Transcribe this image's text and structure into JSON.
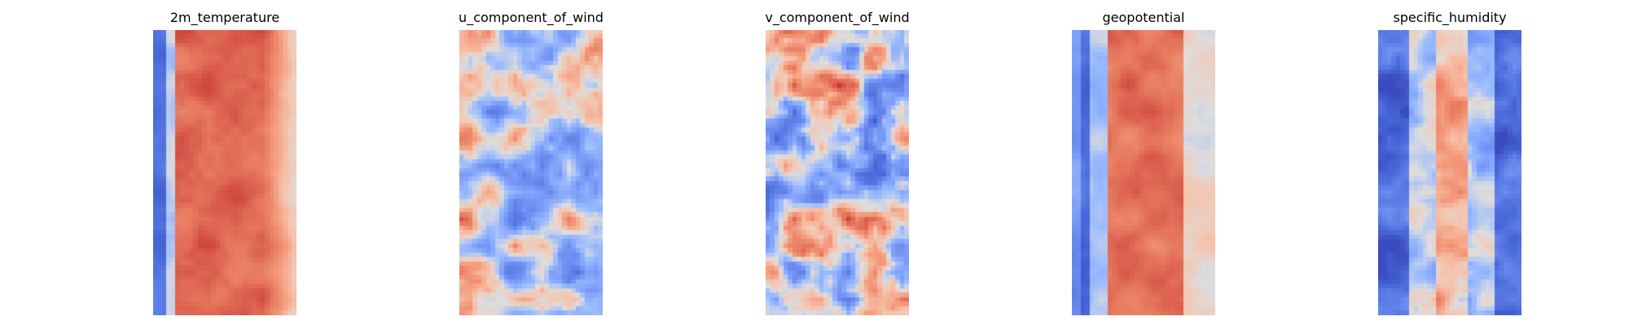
{
  "figure": {
    "panels": [
      {
        "title": "2m_temperature"
      },
      {
        "title": "u_component_of_wind"
      },
      {
        "title": "v_component_of_wind"
      },
      {
        "title": "geopotential"
      },
      {
        "title": "specific_humidity"
      }
    ]
  },
  "chart_data": [
    {
      "type": "heatmap",
      "title": "2m_temperature",
      "colormap": "coolwarm",
      "axes": "off",
      "grid": false,
      "pattern": "warm central band, cold left strip, pale right margin"
    },
    {
      "type": "heatmap",
      "title": "u_component_of_wind",
      "colormap": "coolwarm",
      "axes": "off",
      "grid": false,
      "pattern": "mottled, predominantly cool with warm streaks on left"
    },
    {
      "type": "heatmap",
      "title": "v_component_of_wind",
      "colormap": "coolwarm",
      "axes": "off",
      "grid": false,
      "pattern": "mottled, balanced warm and cool patches"
    },
    {
      "type": "heatmap",
      "title": "geopotential",
      "colormap": "coolwarm",
      "axes": "off",
      "grid": false,
      "pattern": "warm central band, cold left strip, pale right margin"
    },
    {
      "type": "heatmap",
      "title": "specific_humidity",
      "colormap": "coolwarm",
      "axes": "off",
      "grid": false,
      "pattern": "cold edges, warm irregular central column"
    }
  ]
}
